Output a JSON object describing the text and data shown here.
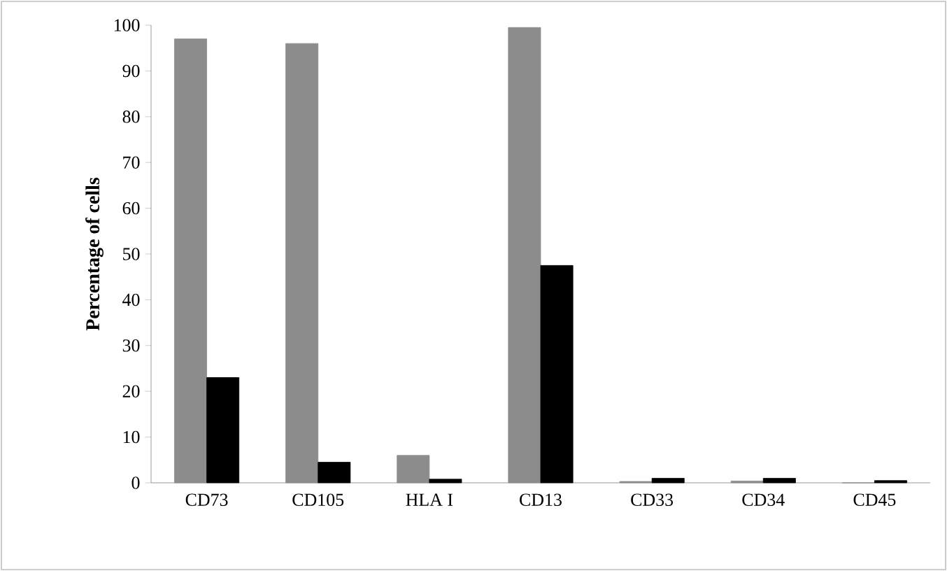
{
  "chart_data": {
    "type": "bar",
    "ylabel": "Percentage of cells",
    "categories": [
      "CD73",
      "CD105",
      "HLA I",
      "CD13",
      "CD33",
      "CD34",
      "CD45"
    ],
    "series": [
      {
        "color": "#8c8c8c",
        "values": [
          97,
          96,
          6,
          99.5,
          0.3,
          0.4,
          0
        ]
      },
      {
        "color": "#000000",
        "values": [
          23,
          4.5,
          0.8,
          47.5,
          1,
          1,
          0.5
        ]
      }
    ],
    "ylim": [
      0,
      100
    ],
    "yticks": [
      0,
      10,
      20,
      30,
      40,
      50,
      60,
      70,
      80,
      90,
      100
    ]
  }
}
